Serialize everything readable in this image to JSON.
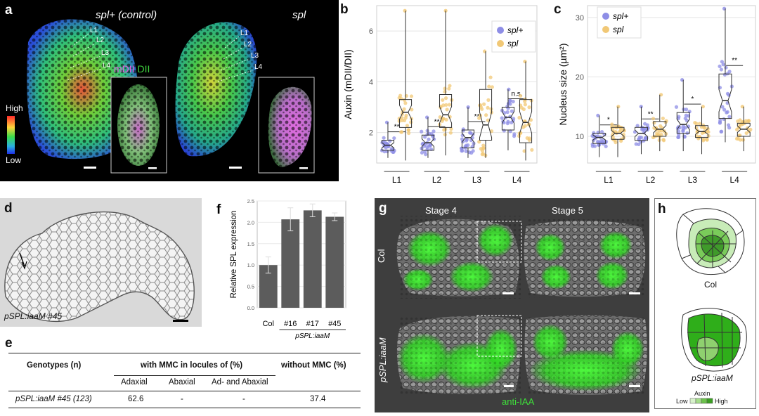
{
  "panel_a": {
    "label": "a",
    "title_left": "spl+ (control)",
    "title_right": "spl",
    "layers": [
      "L1",
      "L2",
      "L3",
      "L4"
    ],
    "legend_high": "High",
    "legend_low": "Low",
    "inset_mdii": "mDII",
    "inset_dii": "DII"
  },
  "panel_d": {
    "label": "d",
    "caption": "pSPL:iaaM #45"
  },
  "panel_e": {
    "label": "e",
    "headers": {
      "genotype": "Genotypes (n)",
      "with_mmc": "with MMC in locules of (%)",
      "without_mmc": "without MMC (%)"
    },
    "subheaders": [
      "Adaxial",
      "Abaxial",
      "Ad- and Abaxial"
    ],
    "row": {
      "genotype": "pSPL:iaaM #45 (123)",
      "adaxial": "62.6",
      "abaxial": "-",
      "both": "-",
      "without": "37.4"
    }
  },
  "panel_f": {
    "label": "f"
  },
  "panel_g": {
    "label": "g",
    "stage4": "Stage 4",
    "stage5": "Stage 5",
    "row_col": "Col",
    "row_iaam": "pSPL:iaaM",
    "stain": "anti-IAA"
  },
  "panel_h": {
    "label": "h",
    "col": "Col",
    "iaam": "pSPL:iaaM",
    "legend_title": "Auxin",
    "legend_low": "Low",
    "legend_high": "High"
  },
  "chart_data": [
    {
      "id": "b",
      "type": "box",
      "label": "b",
      "categories": [
        "L1",
        "L2",
        "L3",
        "L4"
      ],
      "ylabel": "Auxin (mDII/DII)",
      "ylim": [
        0.8,
        7
      ],
      "yticks": [
        2,
        4,
        6
      ],
      "legend": [
        "spl+",
        "spl"
      ],
      "legend_position": "top-right",
      "grid": true,
      "colors": {
        "spl+": "#8e8ee6",
        "spl": "#f1c876"
      },
      "series": [
        {
          "name": "spl+",
          "boxes": [
            {
              "min": 1.0,
              "q1": 1.3,
              "median": 1.5,
              "q3": 1.7,
              "max": 2.4
            },
            {
              "min": 1.0,
              "q1": 1.3,
              "median": 1.6,
              "q3": 1.9,
              "max": 2.6
            },
            {
              "min": 1.0,
              "q1": 1.4,
              "median": 1.8,
              "q3": 2.1,
              "max": 3.0
            },
            {
              "min": 1.3,
              "q1": 2.1,
              "median": 2.6,
              "q3": 3.0,
              "max": 3.7
            }
          ]
        },
        {
          "name": "spl",
          "boxes": [
            {
              "min": 0.9,
              "q1": 2.2,
              "median": 2.8,
              "q3": 3.3,
              "max": 6.8
            },
            {
              "min": 1.1,
              "q1": 2.2,
              "median": 2.7,
              "q3": 3.5,
              "max": 6.8
            },
            {
              "min": 1.0,
              "q1": 1.7,
              "median": 2.3,
              "q3": 3.7,
              "max": 5.2
            },
            {
              "min": 0.9,
              "q1": 1.6,
              "median": 2.4,
              "q3": 3.3,
              "max": 4.8
            }
          ]
        }
      ],
      "significance": [
        "**",
        "**",
        "**",
        "n.s."
      ]
    },
    {
      "id": "c",
      "type": "box",
      "label": "c",
      "categories": [
        "L1",
        "L2",
        "L3",
        "L4"
      ],
      "ylabel": "Nucleus size (µm²)",
      "ylim": [
        5.5,
        32
      ],
      "yticks": [
        10,
        20,
        30
      ],
      "legend": [
        "spl+",
        "spl"
      ],
      "legend_position": "top-left",
      "grid": true,
      "colors": {
        "spl+": "#8e8ee6",
        "spl": "#f1c876"
      },
      "series": [
        {
          "name": "spl+",
          "boxes": [
            {
              "min": 6.5,
              "q1": 8.8,
              "median": 9.8,
              "q3": 10.5,
              "max": 13.5
            },
            {
              "min": 7.0,
              "q1": 9.3,
              "median": 10.5,
              "q3": 11.5,
              "max": 15.0
            },
            {
              "min": 7.5,
              "q1": 10.5,
              "median": 12.0,
              "q3": 14.0,
              "max": 19.5
            },
            {
              "min": 9.0,
              "q1": 13.0,
              "median": 16.0,
              "q3": 20.5,
              "max": 31.5
            }
          ]
        },
        {
          "name": "spl",
          "boxes": [
            {
              "min": 6.5,
              "q1": 9.5,
              "median": 10.5,
              "q3": 11.5,
              "max": 15.0
            },
            {
              "min": 7.5,
              "q1": 10.0,
              "median": 11.2,
              "q3": 12.5,
              "max": 17.0
            },
            {
              "min": 7.0,
              "q1": 9.8,
              "median": 10.8,
              "q3": 11.8,
              "max": 15.0
            },
            {
              "min": 7.5,
              "q1": 10.0,
              "median": 11.2,
              "q3": 12.2,
              "max": 15.0
            }
          ]
        }
      ],
      "significance": [
        "*",
        "**",
        "*",
        "**"
      ]
    },
    {
      "id": "f",
      "type": "bar",
      "categories": [
        "Col",
        "#16",
        "#17",
        "#45"
      ],
      "group_label": "pSPL:iaaM",
      "values": [
        1.0,
        2.07,
        2.28,
        2.13
      ],
      "errors": [
        0.19,
        0.27,
        0.15,
        0.09
      ],
      "ylabel": "Relative SPL expression",
      "ylim": [
        0,
        2.5
      ],
      "yticks": [
        "0.0",
        "0.5",
        "1.0",
        "1.5",
        "2.0",
        "2.5"
      ],
      "bar_color": "#5c5c5c"
    }
  ]
}
